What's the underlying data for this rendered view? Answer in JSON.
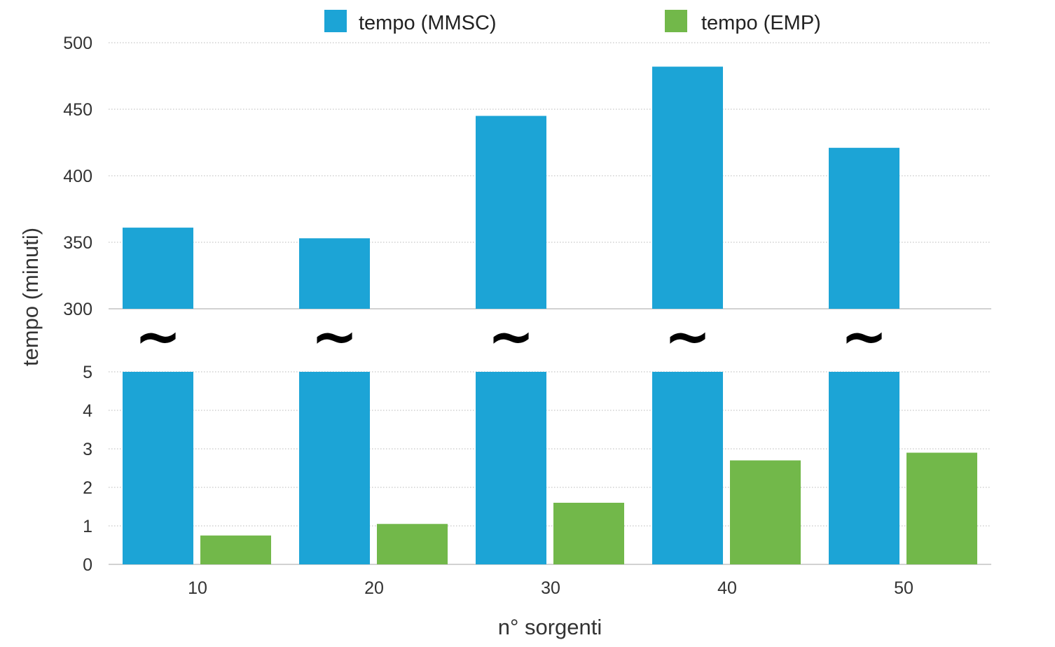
{
  "chart_data": {
    "type": "bar",
    "broken_axis": true,
    "xlabel": "n° sorgenti",
    "ylabel": "tempo (minuti)",
    "categories": [
      "10",
      "20",
      "30",
      "40",
      "50"
    ],
    "series": [
      {
        "name": "tempo (MMSC)",
        "color": "#1ca4d6",
        "values": [
          361,
          353,
          445,
          482,
          421
        ]
      },
      {
        "name": "tempo (EMP)",
        "color": "#72b84a",
        "values": [
          0.75,
          1.05,
          1.6,
          2.7,
          2.9
        ]
      }
    ],
    "upper_ylim": [
      300,
      500
    ],
    "upper_yticks": [
      "500",
      "450",
      "400",
      "350",
      "300"
    ],
    "lower_ylim": [
      0,
      5
    ],
    "lower_yticks": [
      "5",
      "4",
      "3",
      "2",
      "1",
      "0"
    ],
    "break_symbol": "~",
    "grid": true,
    "legend_position": "top"
  }
}
